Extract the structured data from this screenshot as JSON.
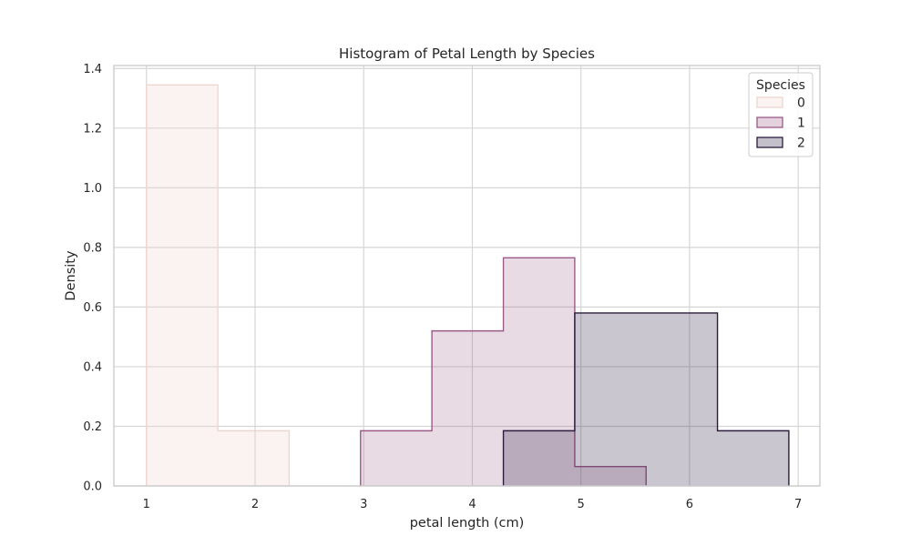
{
  "chart_data": {
    "type": "histogram",
    "title": "Histogram of Petal Length by Species",
    "xlabel": "petal length (cm)",
    "ylabel": "Density",
    "xlim": [
      0.7,
      7.2
    ],
    "ylim": [
      0,
      1.41
    ],
    "xticks": [
      1,
      2,
      3,
      4,
      5,
      6,
      7
    ],
    "yticks": [
      0.0,
      0.2,
      0.4,
      0.6,
      0.8,
      1.0,
      1.2,
      1.4
    ],
    "grid": true,
    "legend": {
      "title": "Species",
      "position": "top-right"
    },
    "series": [
      {
        "name": "0",
        "color": "#eed6d0",
        "fill_opacity": 0.3,
        "bins": [
          {
            "x0": 1.0,
            "x1": 1.657,
            "density": 1.345
          },
          {
            "x0": 1.657,
            "x1": 2.314,
            "density": 0.185
          }
        ]
      },
      {
        "name": "1",
        "color": "#9a5a86",
        "fill_opacity": 0.22,
        "bins": [
          {
            "x0": 2.971,
            "x1": 3.628,
            "density": 0.185
          },
          {
            "x0": 3.628,
            "x1": 4.286,
            "density": 0.52
          },
          {
            "x0": 4.286,
            "x1": 4.943,
            "density": 0.765
          },
          {
            "x0": 4.943,
            "x1": 5.6,
            "density": 0.065
          }
        ]
      },
      {
        "name": "2",
        "color": "#2b1b3e",
        "fill_opacity": 0.25,
        "bins": [
          {
            "x0": 4.286,
            "x1": 4.943,
            "density": 0.185
          },
          {
            "x0": 4.943,
            "x1": 6.257,
            "density": 0.58
          },
          {
            "x0": 6.257,
            "x1": 6.914,
            "density": 0.185
          }
        ]
      }
    ]
  }
}
